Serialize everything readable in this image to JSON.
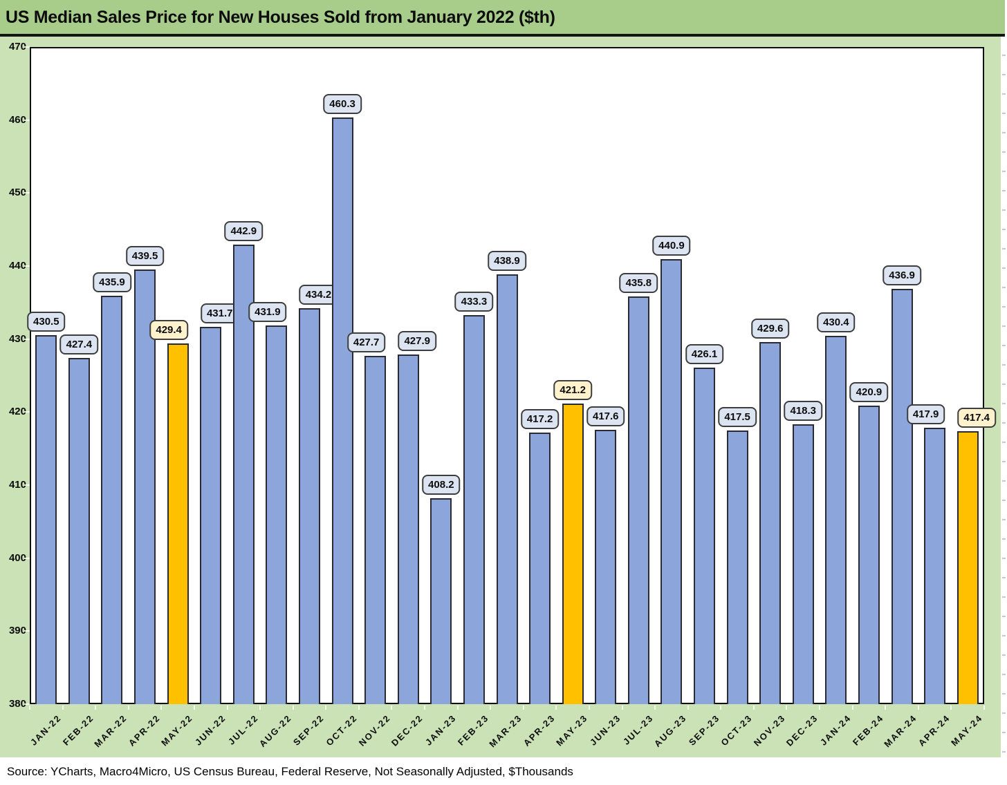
{
  "title": "US Median Sales Price for New Houses Sold from January 2022 ($th)",
  "source_note": "Source: YCharts, Macro4Micro, US Census Bureau, Federal Reserve, Not Seasonally Adjusted, $Thousands",
  "chart_data": {
    "type": "bar",
    "title": "US Median Sales Price for New Houses Sold from January 2022 ($th)",
    "xlabel": "",
    "ylabel": "",
    "categories": [
      "JAN-22",
      "FEB-22",
      "MAR-22",
      "APR-22",
      "MAY-22",
      "JUN-22",
      "JUL-22",
      "AUG-22",
      "SEP-22",
      "OCT-22",
      "NOV-22",
      "DEC-22",
      "JAN-23",
      "FEB-23",
      "MAR-23",
      "APR-23",
      "MAY-23",
      "JUN-23",
      "JUL-23",
      "AUG-23",
      "SEP-23",
      "OCT-23",
      "NOV-23",
      "DEC-23",
      "JAN-24",
      "FEB-24",
      "MAR-24",
      "APR-24",
      "MAY-24"
    ],
    "values": [
      430.5,
      427.4,
      435.9,
      439.5,
      429.4,
      431.7,
      442.9,
      431.9,
      434.2,
      460.3,
      427.7,
      427.9,
      408.2,
      433.3,
      438.9,
      417.2,
      421.2,
      417.6,
      435.8,
      440.9,
      426.1,
      417.5,
      429.6,
      418.3,
      430.4,
      420.9,
      436.9,
      417.9,
      417.4
    ],
    "highlight_indices": [
      4,
      16,
      28
    ],
    "bar_labels": true,
    "ylim": [
      380,
      470
    ],
    "yticks": [
      380,
      390,
      400,
      410,
      420,
      430,
      440,
      450,
      460,
      470
    ],
    "grid": false,
    "legend": false,
    "colors": {
      "bar": "#8CA5DB",
      "bar_highlight": "#FFC000",
      "bar_border": "#2A2A33",
      "value_label_bg": "#DCE4F2",
      "value_label_bg_highlight": "#FFF2CC",
      "value_label_border": "#3D3D3D",
      "title_band_bg": "#A8CD8B",
      "chart_bg": "#CBE2B6",
      "plot_bg": "#FFFFFF"
    }
  }
}
